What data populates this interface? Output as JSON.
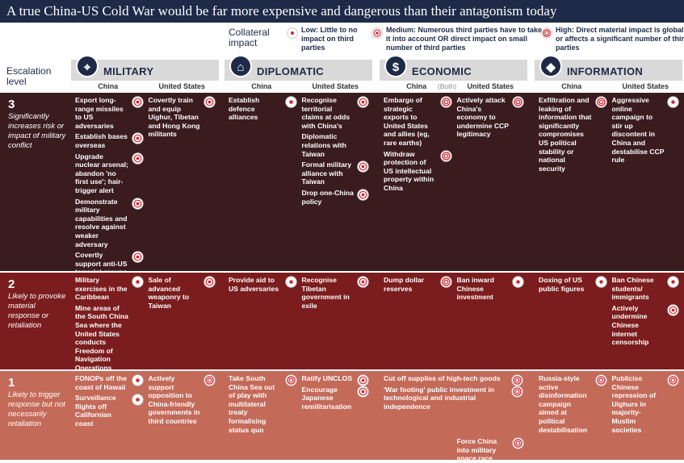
{
  "title": "A true China-US Cold War would be far more expensive and dangerous than their antagonism today",
  "legend": {
    "title": "Collateral impact",
    "items": [
      {
        "impact": "low",
        "label": "Low:",
        "text": "Little to no impact on third parties"
      },
      {
        "impact": "medium",
        "label": "Medium:",
        "text": "Numerous third parties have to take it into account OR direct impact on small number of third parties"
      },
      {
        "impact": "high",
        "label": "High:",
        "text": "Direct material impact is global or affects a significant number of third parties"
      }
    ]
  },
  "escalation_label": "Escalation level",
  "columns": {
    "china": "China",
    "us": "United States"
  },
  "categories": [
    {
      "name": "MILITARY"
    },
    {
      "name": "DIPLOMATIC"
    },
    {
      "name": "ECONOMIC",
      "both_label": "(Both)"
    },
    {
      "name": "INFORMATION"
    }
  ],
  "rows": [
    {
      "level": 3,
      "description": "Significantly increases risk or impact of military conflict",
      "cells": [
        {
          "china": [
            {
              "text": "Export long-range missiles to US adversaries",
              "impact": "medium"
            },
            {
              "text": "Establish bases overseas",
              "impact": "medium"
            },
            {
              "text": "Upgrade nuclear arsenal; abandon 'no first use'; hair-trigger alert",
              "impact": "medium"
            },
            {
              "text": "Demonstrate military capabilities and resolve against weaker adversary",
              "impact": "medium"
            },
            {
              "text": "Covertly support anti-US terrorist groups",
              "impact": "medium"
            }
          ],
          "us": [
            {
              "text": "Covertly train and equip Uighur, Tibetan and Hong Kong militants",
              "impact": "medium"
            }
          ]
        },
        {
          "china": [
            {
              "text": "Establish defence alliances",
              "impact": "low"
            }
          ],
          "us": [
            {
              "text": "Recognise territorial claims at odds with China's",
              "impact": "medium"
            },
            {
              "text": "Diplomatic relations with Taiwan",
              "impact": null
            },
            {
              "text": "Formal military alliance with Taiwan",
              "impact": "medium"
            },
            {
              "text": "Drop one-China policy",
              "impact": "medium"
            }
          ]
        },
        {
          "china": [
            {
              "text": "Embargo of strategic exports to United States and allies (eg, rare earths)",
              "impact": "high"
            },
            {
              "text": "Withdraw protection of US intellectual property within China",
              "impact": "high"
            }
          ],
          "us": [
            {
              "text": "Actively attack China's economy to undermine CCP legitimacy",
              "impact": "high"
            }
          ]
        },
        {
          "china": [
            {
              "text": "Exfiltration and leaking of information that significantly compromises US political stability or national security",
              "impact": "high"
            }
          ],
          "us": [
            {
              "text": "Aggressive online campaign to stir up discontent in China and destabilise CCP rule",
              "impact": "low"
            }
          ]
        }
      ]
    },
    {
      "level": 2,
      "description": "Likely to provoke material response or retaliation",
      "cells": [
        {
          "china": [
            {
              "text": "Military exercises in the Caribbean",
              "impact": "low"
            },
            {
              "text": "Mine areas of the South China Sea where the United States conducts Freedom of Navigation Operations",
              "impact": null
            }
          ],
          "us": [
            {
              "text": "Sale of advanced weaponry to Taiwan",
              "impact": "medium"
            }
          ]
        },
        {
          "china": [
            {
              "text": "Provide aid to US adversaries",
              "impact": "low"
            }
          ],
          "us": [
            {
              "text": "Recognise Tibetan government in exile",
              "impact": "medium"
            }
          ]
        },
        {
          "china": [
            {
              "text": "Dump dollar reserves",
              "impact": "high"
            }
          ],
          "us": [
            {
              "text": "Ban inward Chinese investment",
              "impact": "low"
            }
          ]
        },
        {
          "china": [
            {
              "text": "Doxing of US public figures",
              "impact": "low"
            }
          ],
          "us": [
            {
              "text": "Ban Chinese students/ immigrants",
              "impact": "low"
            },
            {
              "text": "Actively undermine Chinese internet censorship",
              "impact": "medium"
            }
          ]
        }
      ]
    },
    {
      "level": 1,
      "description": "Likely to trigger response but not necessarily retaliation",
      "cells": [
        {
          "china": [
            {
              "text": "FONOPs off the coast of Hawaii",
              "impact": "low"
            },
            {
              "text": "Surveillance flights off Californian coast",
              "impact": "low"
            }
          ],
          "us": [
            {
              "text": "Actively support opposition to China-friendly governments in third countries",
              "impact": "high"
            }
          ]
        },
        {
          "china": [
            {
              "text": "Take South China Sea out of play with multilateral treaty formalising status quo",
              "impact": "high"
            }
          ],
          "us": [
            {
              "text": "Ratify UNCLOS",
              "impact": "medium"
            },
            {
              "text": "Encourage Japanese remilitarisation",
              "impact": "medium"
            }
          ]
        },
        {
          "both": [
            {
              "text": "Cut off supplies of high-tech goods",
              "impact": "high"
            },
            {
              "text": "'War footing' public investment in technological and industrial independence",
              "impact": "high"
            }
          ],
          "china": [],
          "us": [
            {
              "text": "Force China into military space race",
              "impact": "high"
            }
          ]
        },
        {
          "china": [
            {
              "text": "Russia-style active disinformation campaign aimed at political destabilisation",
              "impact": "high"
            }
          ],
          "us": [
            {
              "text": "Publicise Chinese repression of Uighurs in majority-Muslim societies",
              "impact": "high"
            }
          ]
        }
      ]
    }
  ]
}
